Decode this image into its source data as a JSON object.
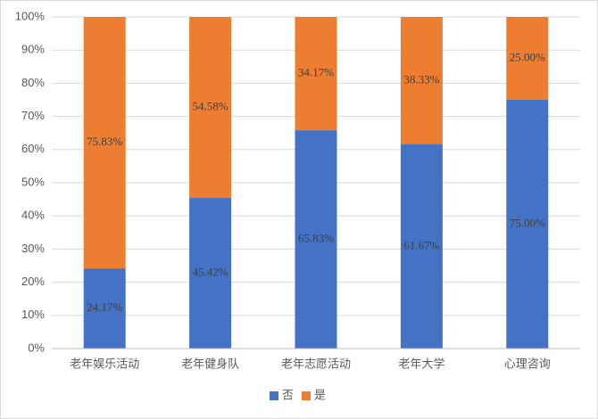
{
  "chart_data": {
    "type": "stacked_bar",
    "categories": [
      "老年娱乐活动",
      "老年健身队",
      "老年志愿活动",
      "老年大学",
      "心理咨询"
    ],
    "series": [
      {
        "name": "否",
        "color": "#4472c4",
        "values": [
          24.17,
          45.42,
          65.83,
          61.67,
          75.0
        ],
        "value_labels": [
          "24.17%",
          "45.42%",
          "65.83%",
          "61.67%",
          "75.00%"
        ]
      },
      {
        "name": "是",
        "color": "#ed7d31",
        "values": [
          75.83,
          54.58,
          34.17,
          38.33,
          25.0
        ],
        "value_labels": [
          "75.83%",
          "54.58%",
          "34.17%",
          "38.33%",
          "25.00%"
        ]
      }
    ],
    "ylim": [
      0,
      100
    ],
    "yticks": [
      {
        "value": 0,
        "label": "0%"
      },
      {
        "value": 10,
        "label": "10%"
      },
      {
        "value": 20,
        "label": "20%"
      },
      {
        "value": 30,
        "label": "30%"
      },
      {
        "value": 40,
        "label": "40%"
      },
      {
        "value": 50,
        "label": "50%"
      },
      {
        "value": 60,
        "label": "60%"
      },
      {
        "value": 70,
        "label": "70%"
      },
      {
        "value": 80,
        "label": "80%"
      },
      {
        "value": 90,
        "label": "90%"
      },
      {
        "value": 100,
        "label": "100%"
      }
    ],
    "grid": true,
    "legend": "bottom"
  }
}
